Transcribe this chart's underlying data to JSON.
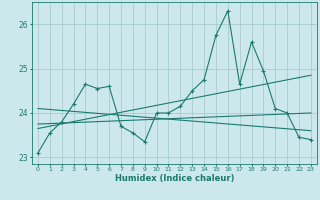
{
  "xlabel": "Humidex (Indice chaleur)",
  "bg_color": "#cce8ec",
  "grid_color": "#aacccc",
  "line_color": "#1a7a6e",
  "xlim": [
    -0.5,
    23.5
  ],
  "ylim": [
    22.85,
    26.5
  ],
  "xticks": [
    0,
    1,
    2,
    3,
    4,
    5,
    6,
    7,
    8,
    9,
    10,
    11,
    12,
    13,
    14,
    15,
    16,
    17,
    18,
    19,
    20,
    21,
    22,
    23
  ],
  "yticks": [
    23,
    24,
    25,
    26
  ],
  "line1_x": [
    0,
    1,
    2,
    3,
    4,
    5,
    6,
    7,
    8,
    9,
    10,
    11,
    12,
    13,
    14,
    15,
    16,
    17,
    18,
    19,
    20,
    21,
    22,
    23
  ],
  "line1_y": [
    23.1,
    23.55,
    23.8,
    24.2,
    24.65,
    24.55,
    24.6,
    23.7,
    23.55,
    23.35,
    24.0,
    24.0,
    24.15,
    24.5,
    24.75,
    25.75,
    26.3,
    24.65,
    25.6,
    24.95,
    24.1,
    24.0,
    23.45,
    23.4
  ],
  "line2_x": [
    0,
    23
  ],
  "line2_y": [
    23.65,
    24.85
  ],
  "line3_x": [
    0,
    23
  ],
  "line3_y": [
    23.75,
    24.0
  ],
  "line4_x": [
    0,
    23
  ],
  "line4_y": [
    24.1,
    23.6
  ]
}
